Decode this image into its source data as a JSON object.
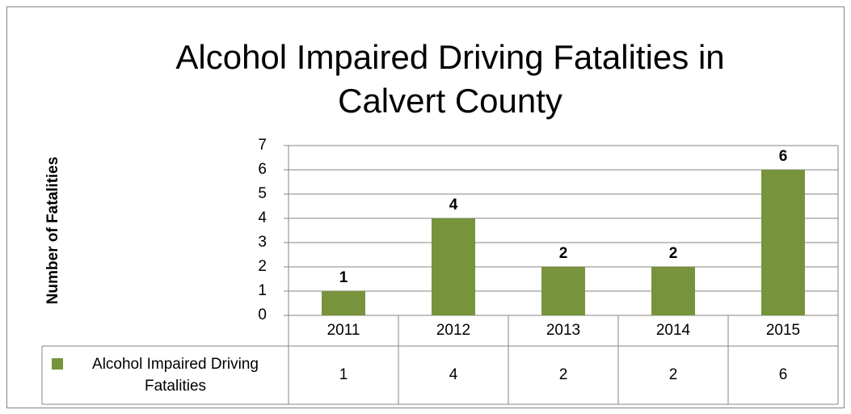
{
  "chart_data": {
    "type": "bar",
    "title": "Alcohol Impaired Driving Fatalities in Calvert County",
    "y_label": "Number of Fatalities",
    "categories": [
      "2011",
      "2012",
      "2013",
      "2014",
      "2015"
    ],
    "series": [
      {
        "name": "Alcohol Impaired Driving Fatalities",
        "color": "#77933c",
        "values": [
          1,
          4,
          2,
          2,
          6
        ]
      }
    ],
    "ylim": [
      0,
      7
    ],
    "yticks": [
      0,
      1,
      2,
      3,
      4,
      5,
      6,
      7
    ],
    "grid": true,
    "data_labels": true,
    "data_table": true
  }
}
